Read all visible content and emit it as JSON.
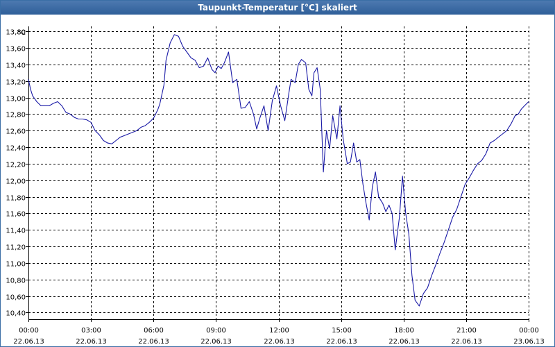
{
  "window": {
    "title": "Taupunkt-Temperatur [°C] skaliert"
  },
  "chart_data": {
    "type": "line",
    "title": "Taupunkt-Temperatur [°C] skaliert",
    "ylabel_unit": "°C",
    "xlim": [
      0,
      24
    ],
    "ylim": [
      10.32,
      13.86
    ],
    "grid": true,
    "colors": {
      "line": "#1a1aa6",
      "grid": "#000000",
      "axis": "#000000",
      "titlebar": "#3b69a4"
    },
    "yticks": [
      "13,80",
      "13,60",
      "13,40",
      "13,20",
      "13,00",
      "12,80",
      "12,60",
      "12,40",
      "12,20",
      "12,00",
      "11,80",
      "11,60",
      "11,40",
      "11,20",
      "11,00",
      "10,80",
      "10,60",
      "10,40"
    ],
    "ytick_values": [
      13.8,
      13.6,
      13.4,
      13.2,
      13.0,
      12.8,
      12.6,
      12.4,
      12.2,
      12.0,
      11.8,
      11.6,
      11.4,
      11.2,
      11.0,
      10.8,
      10.6,
      10.4
    ],
    "xticks": [
      {
        "time": "00:00",
        "date": "22.06.13",
        "hour": 0
      },
      {
        "time": "03:00",
        "date": "22.06.13",
        "hour": 3
      },
      {
        "time": "06:00",
        "date": "22.06.13",
        "hour": 6
      },
      {
        "time": "09:00",
        "date": "22.06.13",
        "hour": 9
      },
      {
        "time": "12:00",
        "date": "22.06.13",
        "hour": 12
      },
      {
        "time": "15:00",
        "date": "22.06.13",
        "hour": 15
      },
      {
        "time": "18:00",
        "date": "22.06.13",
        "hour": 18
      },
      {
        "time": "21:00",
        "date": "22.06.13",
        "hour": 21
      },
      {
        "time": "00:00",
        "date": "23.06.13",
        "hour": 24
      }
    ],
    "series": [
      {
        "x": [
          0.0,
          0.1,
          0.2,
          0.4,
          0.6,
          0.8,
          1.0,
          1.2,
          1.4,
          1.6,
          1.8,
          2.0,
          2.2,
          2.4,
          2.6,
          2.8,
          3.0,
          3.2,
          3.4,
          3.6,
          3.8,
          4.0,
          4.2,
          4.4,
          4.6,
          4.8,
          5.0,
          5.2,
          5.4,
          5.6,
          5.8,
          6.0,
          6.2,
          6.3,
          6.5,
          6.6,
          6.8,
          7.0,
          7.2,
          7.4,
          7.6,
          7.8,
          8.0,
          8.2,
          8.4,
          8.6,
          8.8,
          8.95,
          9.1,
          9.25,
          9.4,
          9.6,
          9.8,
          10.0,
          10.2,
          10.4,
          10.6,
          10.8,
          10.95,
          11.1,
          11.3,
          11.5,
          11.7,
          11.9,
          12.1,
          12.3,
          12.5,
          12.6,
          12.8,
          12.95,
          13.1,
          13.3,
          13.45,
          13.6,
          13.7,
          13.85,
          14.0,
          14.15,
          14.3,
          14.45,
          14.6,
          14.8,
          14.95,
          15.1,
          15.3,
          15.45,
          15.6,
          15.75,
          15.9,
          16.05,
          16.2,
          16.35,
          16.5,
          16.65,
          16.8,
          17.0,
          17.15,
          17.3,
          17.45,
          17.6,
          17.8,
          17.95,
          18.1,
          18.25,
          18.4,
          18.55,
          18.75,
          18.95,
          19.15,
          19.35,
          19.55,
          19.75,
          19.95,
          20.15,
          20.35,
          20.55,
          20.75,
          20.95,
          21.15,
          21.35,
          21.55,
          21.75,
          21.95,
          22.15,
          22.35,
          22.55,
          22.75,
          22.95,
          23.15,
          23.35,
          23.5,
          23.65,
          23.8,
          24.0
        ],
        "y": [
          13.22,
          13.1,
          13.02,
          12.95,
          12.9,
          12.9,
          12.9,
          12.93,
          12.95,
          12.9,
          12.82,
          12.8,
          12.76,
          12.74,
          12.74,
          12.73,
          12.7,
          12.6,
          12.55,
          12.48,
          12.45,
          12.44,
          12.48,
          12.52,
          12.54,
          12.56,
          12.58,
          12.6,
          12.64,
          12.66,
          12.7,
          12.75,
          12.85,
          12.92,
          13.15,
          13.45,
          13.66,
          13.76,
          13.74,
          13.62,
          13.55,
          13.48,
          13.45,
          13.36,
          13.38,
          13.48,
          13.34,
          13.3,
          13.38,
          13.35,
          13.42,
          13.55,
          13.18,
          13.22,
          12.87,
          12.88,
          12.95,
          12.8,
          12.62,
          12.75,
          12.9,
          12.6,
          12.96,
          13.14,
          12.9,
          12.72,
          13.06,
          13.22,
          13.18,
          13.4,
          13.46,
          13.42,
          13.1,
          13.02,
          13.3,
          13.36,
          13.1,
          12.1,
          12.6,
          12.38,
          12.78,
          12.5,
          12.9,
          12.5,
          12.2,
          12.22,
          12.45,
          12.22,
          12.25,
          11.95,
          11.72,
          11.52,
          11.92,
          12.1,
          11.8,
          11.72,
          11.62,
          11.7,
          11.6,
          11.16,
          11.55,
          12.05,
          11.6,
          11.35,
          10.85,
          10.55,
          10.48,
          10.63,
          10.7,
          10.85,
          10.98,
          11.12,
          11.25,
          11.4,
          11.55,
          11.65,
          11.8,
          11.95,
          12.03,
          12.12,
          12.2,
          12.24,
          12.32,
          12.45,
          12.48,
          12.52,
          12.56,
          12.6,
          12.68,
          12.78,
          12.8,
          12.86,
          12.9,
          12.95
        ]
      }
    ]
  }
}
